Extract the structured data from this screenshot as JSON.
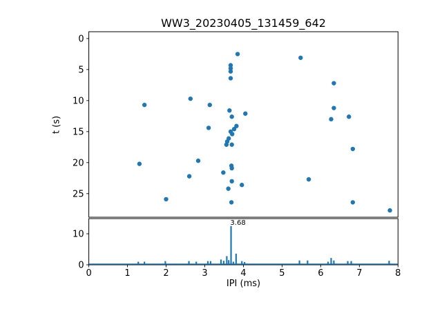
{
  "figure": {
    "title": "WW3_20230405_131459_642",
    "background_color": "#ffffff",
    "accent_color": "#1f77b4",
    "text_color": "#000000"
  },
  "chart_data": [
    {
      "type": "scatter",
      "title": "WW3_20230405_131459_642",
      "xlabel": "",
      "ylabel": "t (s)",
      "xlim": [
        0,
        8
      ],
      "ylim": [
        -1.1,
        28.8
      ],
      "y_inverted": true,
      "yticks": [
        0,
        5,
        10,
        15,
        20,
        25
      ],
      "grid": false,
      "marker_color": "#1f77b4",
      "points": [
        [
          3.85,
          2.5
        ],
        [
          5.48,
          3.1
        ],
        [
          3.67,
          4.3
        ],
        [
          3.67,
          4.8
        ],
        [
          3.67,
          5.3
        ],
        [
          3.67,
          6.4
        ],
        [
          6.34,
          7.2
        ],
        [
          2.63,
          9.7
        ],
        [
          1.44,
          10.7
        ],
        [
          3.13,
          10.7
        ],
        [
          6.34,
          11.2
        ],
        [
          3.64,
          11.6
        ],
        [
          4.05,
          12.1
        ],
        [
          3.7,
          12.6
        ],
        [
          6.73,
          12.6
        ],
        [
          6.27,
          13.0
        ],
        [
          3.82,
          14.1
        ],
        [
          3.1,
          14.4
        ],
        [
          3.76,
          14.6
        ],
        [
          3.67,
          15.0
        ],
        [
          3.71,
          15.4
        ],
        [
          3.62,
          16.1
        ],
        [
          3.58,
          16.6
        ],
        [
          3.56,
          17.1
        ],
        [
          3.7,
          17.1
        ],
        [
          6.83,
          17.8
        ],
        [
          2.83,
          19.7
        ],
        [
          1.31,
          20.2
        ],
        [
          3.69,
          20.5
        ],
        [
          3.7,
          20.9
        ],
        [
          3.48,
          21.6
        ],
        [
          2.6,
          22.2
        ],
        [
          5.69,
          22.7
        ],
        [
          3.7,
          23.0
        ],
        [
          3.96,
          23.6
        ],
        [
          3.61,
          24.2
        ],
        [
          2.0,
          25.9
        ],
        [
          3.69,
          26.4
        ],
        [
          6.83,
          26.4
        ],
        [
          7.79,
          27.7
        ]
      ]
    },
    {
      "type": "bar",
      "xlabel": "IPI (ms)",
      "ylabel": "",
      "xlim": [
        0,
        8
      ],
      "ylim": [
        0,
        14.9
      ],
      "xticks": [
        0,
        1,
        2,
        3,
        4,
        5,
        6,
        7,
        8
      ],
      "yticks": [
        0,
        10
      ],
      "grid": false,
      "bar_color": "#1f77b4",
      "annotation": {
        "text": "3.68",
        "x": 3.66,
        "y": 12.9
      },
      "bars": [
        [
          1.28,
          1.0
        ],
        [
          1.44,
          1.0
        ],
        [
          1.98,
          1.2
        ],
        [
          2.59,
          1.2
        ],
        [
          2.78,
          1.0
        ],
        [
          3.08,
          1.2
        ],
        [
          3.15,
          1.2
        ],
        [
          3.42,
          1.7
        ],
        [
          3.49,
          1.3
        ],
        [
          3.57,
          2.8
        ],
        [
          3.62,
          1.5
        ],
        [
          3.68,
          12.5
        ],
        [
          3.74,
          1.0
        ],
        [
          3.81,
          3.6
        ],
        [
          3.96,
          1.2
        ],
        [
          4.03,
          0.9
        ],
        [
          5.45,
          1.4
        ],
        [
          5.66,
          1.4
        ],
        [
          6.19,
          1.0
        ],
        [
          6.27,
          2.2
        ],
        [
          6.34,
          1.4
        ],
        [
          6.7,
          1.2
        ],
        [
          6.79,
          1.2
        ],
        [
          7.77,
          1.3
        ]
      ]
    }
  ]
}
